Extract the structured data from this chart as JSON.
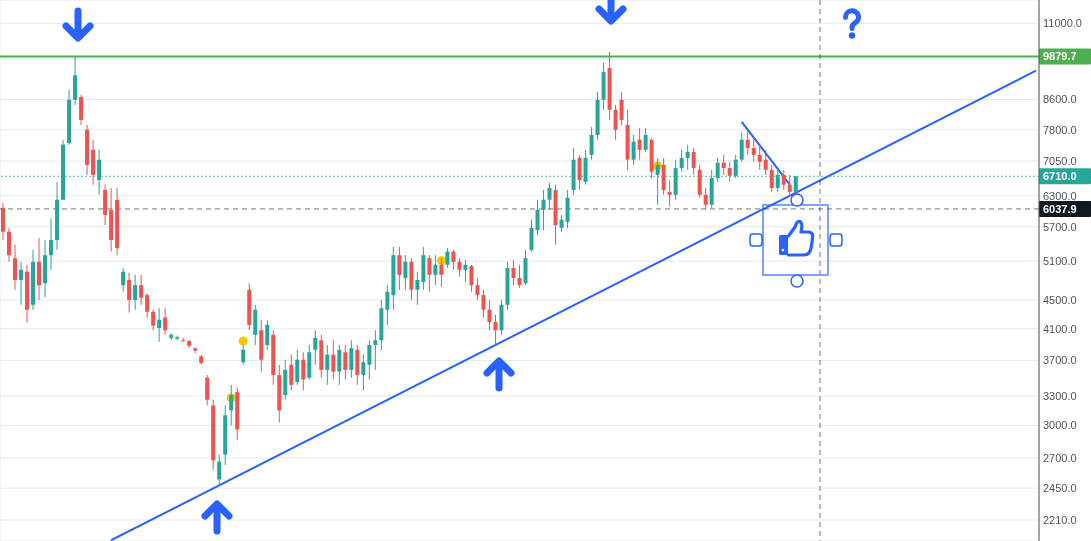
{
  "chart_data": {
    "type": "candlestick",
    "categories": [
      null,
      null,
      null,
      null,
      null,
      null,
      null,
      null,
      null,
      null,
      null,
      null,
      null,
      null,
      null,
      null,
      null,
      null,
      null,
      null,
      null,
      null,
      null,
      null,
      null,
      null,
      null,
      null,
      null,
      null,
      null,
      null,
      null,
      null,
      null,
      null,
      null,
      null,
      null,
      null,
      null,
      null,
      null,
      null,
      null,
      null,
      null,
      null,
      null,
      null,
      null,
      null,
      null,
      null,
      null,
      null,
      null,
      null,
      null,
      null,
      null,
      null,
      null,
      null,
      null,
      null,
      null,
      null,
      null,
      null,
      null,
      null,
      null,
      null,
      null,
      null,
      null,
      null,
      null,
      null,
      null,
      null,
      null,
      null,
      null,
      null,
      null,
      null,
      null,
      null,
      null,
      null,
      null,
      null,
      null,
      null,
      null,
      null,
      null,
      null,
      null,
      null,
      null,
      null,
      null,
      null,
      null,
      null,
      null,
      null,
      null,
      null,
      null,
      null,
      null,
      null,
      null,
      null,
      null,
      null,
      null,
      null,
      null,
      null,
      null,
      null,
      null,
      null,
      null,
      null,
      null,
      null,
      null,
      null,
      null,
      null,
      null,
      null,
      null,
      null,
      null,
      null,
      null,
      null,
      null,
      null,
      null,
      null,
      null,
      null,
      null,
      null,
      null,
      null,
      null,
      null,
      null,
      null,
      null,
      null,
      null,
      null,
      null,
      null,
      null,
      null,
      null,
      null,
      null,
      null,
      null,
      null,
      null
    ],
    "ohlc": [
      [
        6060,
        6160,
        5460,
        5610
      ],
      [
        5610,
        5680,
        5090,
        5200
      ],
      [
        5150,
        5380,
        4650,
        4800
      ],
      [
        4800,
        5090,
        4430,
        4960
      ],
      [
        4930,
        5040,
        4180,
        4360
      ],
      [
        4430,
        5290,
        4360,
        5090
      ],
      [
        5090,
        5500,
        4500,
        4720
      ],
      [
        4750,
        5460,
        4540,
        5200
      ],
      [
        5200,
        5860,
        4960,
        5460
      ],
      [
        5460,
        6590,
        5290,
        6220
      ],
      [
        6220,
        7550,
        6220,
        7430
      ],
      [
        7470,
        8870,
        7430,
        8590
      ],
      [
        8590,
        9880,
        8450,
        9300
      ],
      [
        8670,
        8730,
        7920,
        8050
      ],
      [
        7800,
        7920,
        6740,
        6960
      ],
      [
        7310,
        7550,
        6530,
        6740
      ],
      [
        6630,
        7310,
        6320,
        7080
      ],
      [
        6420,
        6530,
        5730,
        5920
      ],
      [
        6020,
        6460,
        5260,
        5460
      ],
      [
        6220,
        6460,
        5200,
        5320
      ],
      [
        4720,
        4990,
        4620,
        4930
      ],
      [
        4800,
        4910,
        4320,
        4500
      ],
      [
        4500,
        4880,
        4360,
        4720
      ],
      [
        4720,
        4880,
        4430,
        4530
      ],
      [
        4570,
        4600,
        4250,
        4330
      ],
      [
        4330,
        4360,
        4080,
        4140
      ],
      [
        4110,
        4380,
        3930,
        4220
      ],
      [
        4250,
        4380,
        4020,
        4080
      ],
      [
        3980,
        4040,
        3950,
        4020
      ],
      [
        3970,
        4010,
        3950,
        3990
      ],
      [
        3950,
        3980,
        3930,
        3940
      ],
      [
        3940,
        3950,
        3850,
        3880
      ],
      [
        3850,
        3860,
        3790,
        3820
      ],
      [
        3750,
        3770,
        3650,
        3670
      ],
      [
        3500,
        3530,
        3200,
        3260
      ],
      [
        3200,
        3260,
        2600,
        2680
      ],
      [
        2520,
        2730,
        2470,
        2670
      ],
      [
        2730,
        3200,
        2640,
        3100
      ],
      [
        3150,
        3420,
        3000,
        3310
      ],
      [
        3340,
        3390,
        2860,
        2960
      ],
      [
        3680,
        3890,
        3650,
        3830
      ],
      [
        4650,
        4750,
        4080,
        4150
      ],
      [
        4020,
        4430,
        3890,
        4360
      ],
      [
        4080,
        4220,
        3570,
        3710
      ],
      [
        3890,
        4220,
        3830,
        4150
      ],
      [
        4020,
        4080,
        3420,
        3530
      ],
      [
        3530,
        3650,
        3030,
        3150
      ],
      [
        3310,
        3710,
        3260,
        3590
      ],
      [
        3650,
        3770,
        3360,
        3420
      ],
      [
        3450,
        3830,
        3420,
        3710
      ],
      [
        3710,
        3800,
        3360,
        3480
      ],
      [
        3500,
        3890,
        3480,
        3800
      ],
      [
        3830,
        4080,
        3650,
        3980
      ],
      [
        3950,
        4020,
        3500,
        3590
      ],
      [
        3590,
        3890,
        3420,
        3770
      ],
      [
        3770,
        3950,
        3480,
        3570
      ],
      [
        3570,
        3890,
        3420,
        3830
      ],
      [
        3800,
        3890,
        3480,
        3590
      ],
      [
        3590,
        3950,
        3500,
        3850
      ],
      [
        3830,
        3890,
        3420,
        3530
      ],
      [
        3530,
        3770,
        3360,
        3680
      ],
      [
        3650,
        3950,
        3480,
        3890
      ],
      [
        3890,
        4080,
        3590,
        3950
      ],
      [
        3950,
        4500,
        3830,
        4380
      ],
      [
        4360,
        4720,
        4150,
        4620
      ],
      [
        4570,
        5340,
        4360,
        5200
      ],
      [
        5200,
        5340,
        4650,
        4880
      ],
      [
        4830,
        5200,
        4650,
        5090
      ],
      [
        5090,
        5150,
        4500,
        4650
      ],
      [
        4650,
        4930,
        4430,
        4800
      ],
      [
        4770,
        5340,
        4650,
        5200
      ],
      [
        5150,
        5200,
        4620,
        4880
      ],
      [
        4880,
        5200,
        4720,
        5040
      ],
      [
        5040,
        5150,
        4690,
        4880
      ],
      [
        5040,
        5320,
        4990,
        5260
      ],
      [
        5260,
        5290,
        4960,
        5090
      ],
      [
        5090,
        5150,
        4850,
        4960
      ],
      [
        4960,
        5120,
        4770,
        5040
      ],
      [
        5020,
        5040,
        4620,
        4720
      ],
      [
        4720,
        4830,
        4500,
        4570
      ],
      [
        4570,
        4650,
        4250,
        4360
      ],
      [
        4360,
        4500,
        4080,
        4190
      ],
      [
        4190,
        4290,
        3890,
        4080
      ],
      [
        4080,
        4500,
        4020,
        4430
      ],
      [
        4430,
        5090,
        4360,
        4990
      ],
      [
        4990,
        5120,
        4720,
        4830
      ],
      [
        4830,
        5040,
        4680,
        4720
      ],
      [
        4750,
        5290,
        4720,
        5150
      ],
      [
        5290,
        5830,
        5260,
        5680
      ],
      [
        5640,
        6220,
        5550,
        6020
      ],
      [
        6020,
        6420,
        5640,
        6220
      ],
      [
        6220,
        6570,
        6020,
        6460
      ],
      [
        6420,
        6530,
        5380,
        5730
      ],
      [
        5680,
        5920,
        5610,
        5830
      ],
      [
        5790,
        6420,
        5680,
        6260
      ],
      [
        6420,
        7350,
        6320,
        7080
      ],
      [
        7120,
        7190,
        6420,
        6630
      ],
      [
        6590,
        7310,
        6530,
        7120
      ],
      [
        7190,
        7870,
        7080,
        7670
      ],
      [
        7670,
        8810,
        7550,
        8590
      ],
      [
        8590,
        9680,
        8320,
        9400
      ],
      [
        9520,
        10030,
        8050,
        8320
      ],
      [
        8320,
        8450,
        7550,
        7800
      ],
      [
        8590,
        8810,
        7920,
        8050
      ],
      [
        7920,
        8320,
        6850,
        7080
      ],
      [
        7080,
        7670,
        6960,
        7500
      ],
      [
        7550,
        7840,
        7080,
        7310
      ],
      [
        7310,
        7840,
        7260,
        7670
      ],
      [
        7550,
        7590,
        6670,
        6810
      ],
      [
        6740,
        7120,
        6120,
        6960
      ],
      [
        6960,
        7120,
        6320,
        6420
      ],
      [
        6380,
        6630,
        6080,
        6320
      ],
      [
        6320,
        7080,
        6220,
        6890
      ],
      [
        6890,
        7310,
        6810,
        7120
      ],
      [
        7120,
        7430,
        6850,
        7260
      ],
      [
        7260,
        7350,
        6740,
        6890
      ],
      [
        6850,
        6960,
        6260,
        6320
      ],
      [
        6320,
        6460,
        6020,
        6120
      ],
      [
        6120,
        6850,
        6060,
        6670
      ],
      [
        6670,
        7120,
        6590,
        7010
      ],
      [
        7010,
        7190,
        6740,
        6890
      ],
      [
        6890,
        7030,
        6590,
        6720
      ],
      [
        6720,
        7190,
        6670,
        7080
      ],
      [
        7080,
        7720,
        7030,
        7550
      ],
      [
        7550,
        7800,
        7190,
        7350
      ],
      [
        7350,
        7550,
        7030,
        7190
      ],
      [
        7190,
        7430,
        6850,
        7030
      ],
      [
        7080,
        7310,
        6740,
        6850
      ],
      [
        6850,
        6960,
        6380,
        6460
      ],
      [
        6460,
        6890,
        6380,
        6740
      ],
      [
        6740,
        6850,
        6420,
        6530
      ],
      [
        6530,
        6740,
        6280,
        6380
      ],
      [
        6380,
        6710,
        6320,
        6710
      ],
      null,
      null,
      null,
      null,
      null,
      null,
      null,
      null,
      null,
      null,
      null,
      null,
      null,
      null,
      null,
      null,
      null,
      null,
      null,
      null,
      null,
      null,
      null,
      null,
      null,
      null,
      null,
      null,
      null,
      null,
      null,
      null,
      null,
      null,
      null,
      null,
      null,
      null,
      null,
      null
    ],
    "colors": [
      "#ef5350",
      "#ef5350",
      "#ef5350",
      "#26a69a",
      "#ef5350",
      "#26a69a",
      "#ef5350",
      "#26a69a",
      "#26a69a",
      "#26a69a",
      "#26a69a",
      "#26a69a",
      "#26a69a",
      "#ef5350",
      "#ef5350",
      "#ef5350",
      "#26a69a",
      "#ef5350",
      "#ef5350",
      "#ef5350",
      "#26a69a",
      "#ef5350",
      "#26a69a",
      "#ef5350",
      "#ef5350",
      "#ef5350",
      "#26a69a",
      "#ef5350",
      "#26a69a",
      "#26a69a",
      "#ef5350",
      "#ef5350",
      "#ef5350",
      "#ef5350",
      "#ef5350",
      "#ef5350",
      "#26a69a",
      "#26a69a",
      "#26a69a",
      "#ef5350",
      "#26a69a",
      "#ef5350",
      "#26a69a",
      "#ef5350",
      "#26a69a",
      "#ef5350",
      "#ef5350",
      "#26a69a",
      "#ef5350",
      "#26a69a",
      "#ef5350",
      "#26a69a",
      "#26a69a",
      "#ef5350",
      "#26a69a",
      "#ef5350",
      "#26a69a",
      "#ef5350",
      "#26a69a",
      "#ef5350",
      "#26a69a",
      "#26a69a",
      "#26a69a",
      "#26a69a",
      "#26a69a",
      "#26a69a",
      "#ef5350",
      "#26a69a",
      "#ef5350",
      "#26a69a",
      "#26a69a",
      "#ef5350",
      "#26a69a",
      "#ef5350",
      "#26a69a",
      "#ef5350",
      "#ef5350",
      "#26a69a",
      "#ef5350",
      "#ef5350",
      "#ef5350",
      "#ef5350",
      "#ef5350",
      "#26a69a",
      "#26a69a",
      "#ef5350",
      "#ef5350",
      "#26a69a",
      "#26a69a",
      "#26a69a",
      "#26a69a",
      "#26a69a",
      "#ef5350",
      "#26a69a",
      "#26a69a",
      "#26a69a",
      "#ef5350",
      "#26a69a",
      "#26a69a",
      "#26a69a",
      "#26a69a",
      "#ef5350",
      "#ef5350",
      "#ef5350",
      "#ef5350",
      "#26a69a",
      "#ef5350",
      "#26a69a",
      "#ef5350",
      "#26a69a",
      "#ef5350",
      "#ef5350",
      "#26a69a",
      "#26a69a",
      "#26a69a",
      "#ef5350",
      "#ef5350",
      "#ef5350",
      "#26a69a",
      "#26a69a",
      "#ef5350",
      "#ef5350",
      "#26a69a",
      "#26a69a",
      "#ef5350",
      "#ef5350",
      "#ef5350",
      "#ef5350",
      "#ef5350",
      "#26a69a",
      "#ef5350",
      "#ef5350",
      "#26a69a",
      null,
      null,
      null,
      null,
      null,
      null,
      null,
      null,
      null,
      null,
      null,
      null,
      null,
      null,
      null,
      null,
      null,
      null,
      null,
      null,
      null,
      null,
      null,
      null,
      null,
      null,
      null,
      null,
      null,
      null,
      null,
      null,
      null,
      null,
      null,
      null,
      null,
      null,
      null,
      null
    ],
    "series": [
      {
        "type": "line",
        "color": "#2962ff",
        "values": [
          null,
          null,
          null,
          null,
          null,
          null,
          null,
          null,
          null,
          null,
          null,
          null,
          null,
          null,
          null,
          null,
          null,
          null,
          2070,
          null,
          null,
          null,
          null,
          null,
          null,
          null,
          null,
          null,
          null,
          null,
          null,
          null,
          null,
          null,
          null,
          null,
          null,
          null,
          null,
          null,
          null,
          null,
          null,
          null,
          null,
          null,
          null,
          null,
          null,
          null,
          null,
          null,
          null,
          null,
          null,
          null,
          null,
          null,
          null,
          null,
          null,
          null,
          null,
          null,
          null,
          null,
          null,
          null,
          null,
          null,
          null,
          null,
          null,
          null,
          null,
          null,
          null,
          null,
          null,
          null,
          null,
          null,
          null,
          null,
          null,
          null,
          null,
          null,
          null,
          null,
          null,
          null,
          null,
          null,
          null,
          null,
          null,
          null,
          null,
          null,
          null,
          null,
          null,
          null,
          null,
          null,
          null,
          null,
          null,
          null,
          null,
          null,
          null,
          null,
          null,
          null,
          null,
          null,
          null,
          null,
          null,
          null,
          null,
          null,
          null,
          null,
          null,
          null,
          null,
          null,
          null,
          null,
          null,
          null,
          null,
          null,
          null,
          null,
          null,
          null,
          null,
          null,
          null,
          null,
          null,
          null,
          null,
          null,
          null,
          null,
          null,
          null,
          null,
          null,
          null,
          null,
          null,
          null,
          null,
          null,
          null,
          null,
          null,
          null,
          null,
          null,
          null,
          null,
          null,
          null,
          null,
          null,
          9440
        ]
      },
      {
        "type": "line",
        "color": "#2962ff",
        "values": [
          null,
          null,
          null,
          null,
          null,
          null,
          null,
          null,
          null,
          null,
          null,
          null,
          null,
          null,
          null,
          null,
          null,
          null,
          null,
          null,
          null,
          null,
          null,
          null,
          null,
          null,
          null,
          null,
          null,
          null,
          null,
          null,
          null,
          null,
          null,
          null,
          null,
          null,
          null,
          null,
          null,
          null,
          null,
          null,
          null,
          null,
          null,
          null,
          null,
          null,
          null,
          null,
          null,
          null,
          null,
          null,
          null,
          null,
          null,
          null,
          null,
          null,
          null,
          null,
          null,
          null,
          null,
          null,
          null,
          null,
          null,
          null,
          null,
          null,
          null,
          null,
          null,
          null,
          null,
          null,
          null,
          null,
          null,
          null,
          null,
          null,
          null,
          null,
          null,
          null,
          null,
          null,
          null,
          null,
          null,
          null,
          null,
          null,
          null,
          null,
          null,
          null,
          null,
          null,
          null,
          null,
          null,
          null,
          null,
          null,
          null,
          null,
          null,
          null,
          null,
          null,
          null,
          null,
          null,
          null,
          null,
          null,
          null,
          8000,
          null,
          null,
          null,
          null,
          null,
          null,
          null,
          6530,
          null,
          null,
          null,
          null,
          null,
          null,
          null,
          null,
          null,
          null,
          null,
          null,
          null,
          null,
          null,
          null,
          null,
          null,
          null,
          null,
          null,
          null,
          null,
          null,
          null,
          null,
          null,
          null,
          null,
          null,
          null,
          null,
          null,
          null,
          null,
          null,
          null,
          null,
          null,
          null,
          null
        ]
      },
      {
        "type": "scatter",
        "color": "#f7c600",
        "marker": "circle",
        "values": [
          null,
          null,
          null,
          null,
          null,
          null,
          null,
          null,
          null,
          null,
          null,
          null,
          null,
          null,
          null,
          null,
          null,
          null,
          null,
          null,
          null,
          null,
          null,
          null,
          null,
          null,
          null,
          null,
          null,
          null,
          null,
          null,
          null,
          null,
          null,
          null,
          null,
          null,
          3280,
          null,
          3940,
          null,
          null,
          null,
          null,
          null,
          null,
          null,
          null,
          null,
          null,
          null,
          null,
          null,
          null,
          null,
          null,
          null,
          null,
          null,
          null,
          null,
          null,
          null,
          null,
          null,
          null,
          null,
          null,
          null,
          null,
          null,
          null,
          5110,
          null,
          null,
          null,
          null,
          null,
          null,
          null,
          null,
          null,
          null,
          null,
          null,
          null,
          null,
          null,
          null,
          null,
          null,
          null,
          null,
          null,
          null,
          null,
          null,
          null,
          null,
          null,
          null,
          null,
          null,
          null,
          null,
          null,
          null,
          null,
          6940,
          null,
          null,
          null,
          null,
          null,
          null,
          null,
          null,
          null,
          null,
          null,
          null,
          null,
          null,
          null,
          null,
          null,
          null,
          null,
          null,
          null,
          null,
          null,
          null,
          null,
          null,
          null,
          null,
          null,
          null,
          null,
          null,
          null,
          null,
          null,
          null,
          null,
          null,
          null,
          null,
          null,
          null,
          null,
          null,
          null,
          null,
          null,
          null,
          null,
          null,
          null,
          null,
          null,
          null,
          null,
          null,
          null,
          null,
          null,
          null,
          null,
          null,
          null
        ]
      }
    ],
    "ylim": [
      2065,
      11860
    ],
    "yticks": [
      {
        "value": 11000,
        "label": "11000.0"
      },
      {
        "value": 9800,
        "label": null
      },
      {
        "value": 8600,
        "label": "8600.0"
      },
      {
        "value": 7800,
        "label": "7800.0"
      },
      {
        "value": 7050,
        "label": "7050.0"
      },
      {
        "value": 6300,
        "label": "6300.0"
      },
      {
        "value": 5700,
        "label": "5700.0"
      },
      {
        "value": 5100,
        "label": "5100.0"
      },
      {
        "value": 4500,
        "label": "4500.0"
      },
      {
        "value": 4100,
        "label": "4100.0"
      },
      {
        "value": 3700,
        "label": "3700.0"
      },
      {
        "value": 3300,
        "label": "3300.0"
      },
      {
        "value": 3000,
        "label": "3000.0"
      },
      {
        "value": 2700,
        "label": "2700.0"
      },
      {
        "value": 2450,
        "label": "2450.0"
      },
      {
        "value": 2210,
        "label": "2210.0"
      }
    ],
    "log": true,
    "grid": true,
    "tick_labels": "y",
    "ref_lines": [
      {
        "axis": "y",
        "value": 9879.7,
        "label": "9879.7",
        "color": "#4caf50",
        "line_style": "solid"
      },
      {
        "axis": "y",
        "value": 6710.0,
        "label": "6710.0",
        "color": "#26a69a",
        "line_style": "dotted"
      },
      {
        "axis": "y",
        "value": 6037.9,
        "label": "6037.9",
        "color": "#131722",
        "line_style": "dashed"
      }
    ]
  }
}
